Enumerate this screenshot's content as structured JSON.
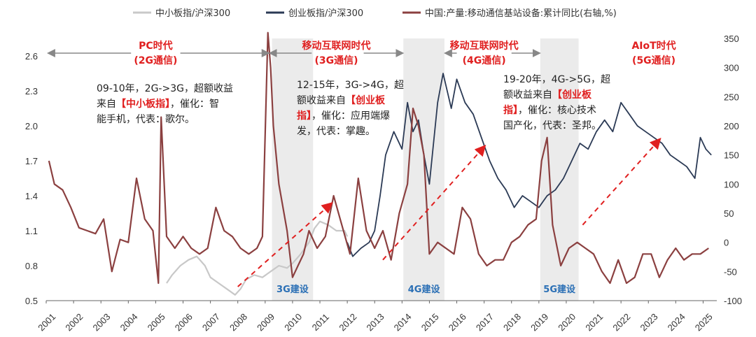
{
  "chart_data": {
    "type": "line",
    "legend": [
      {
        "name": "中小板指/沪深300",
        "color": "#c8c8c8",
        "axis": "left"
      },
      {
        "name": "创业板指/沪深300",
        "color": "#2b3a55",
        "axis": "left"
      },
      {
        "name": "中国:产量:移动通信基站设备:累计同比(右轴,%)",
        "color": "#8b4040",
        "axis": "right"
      }
    ],
    "legend_position": "top",
    "left_axis": {
      "min": 0.5,
      "max": 2.75,
      "ticks": [
        "0.5",
        "0.8",
        "1.1",
        "1.4",
        "1.7",
        "2.0",
        "2.3",
        "2.6"
      ]
    },
    "right_axis": {
      "min": -100,
      "max": 350,
      "ticks": [
        "-100",
        "-50",
        "0",
        "50",
        "100",
        "150",
        "200",
        "250",
        "300",
        "350"
      ]
    },
    "x_axis": {
      "min": 2001,
      "max": 2025.5,
      "ticks": [
        "2001",
        "2002",
        "2003",
        "2004",
        "2005",
        "2006",
        "2007",
        "2008",
        "2009",
        "2010",
        "2011",
        "2012",
        "2013",
        "2014",
        "2015",
        "2016",
        "2017",
        "2018",
        "2019",
        "2020",
        "2021",
        "2022",
        "2023",
        "2024",
        "2025"
      ]
    },
    "grid": false,
    "series": [
      {
        "name": "中小板指/沪深300",
        "axis": "left",
        "color": "#c8c8c8",
        "x": [
          2005.4,
          2005.6,
          2005.9,
          2006.2,
          2006.5,
          2006.8,
          2007.0,
          2007.3,
          2007.6,
          2007.9,
          2008.1,
          2008.3,
          2008.6,
          2008.9,
          2009.2,
          2009.5,
          2009.8,
          2010.0,
          2010.3,
          2010.6,
          2010.8,
          2011.0,
          2011.3,
          2011.6,
          2011.9,
          2012.0
        ],
        "y": [
          0.65,
          0.72,
          0.8,
          0.85,
          0.88,
          0.8,
          0.7,
          0.65,
          0.6,
          0.55,
          0.6,
          0.68,
          0.72,
          0.7,
          0.75,
          0.8,
          0.78,
          0.82,
          0.9,
          1.0,
          1.12,
          1.18,
          1.15,
          1.1,
          1.1,
          1.05
        ]
      },
      {
        "name": "创业板指/沪深300",
        "axis": "left",
        "color": "#2b3a55",
        "x": [
          2012.0,
          2012.2,
          2012.5,
          2012.8,
          2013.0,
          2013.2,
          2013.4,
          2013.7,
          2014.0,
          2014.2,
          2014.4,
          2014.6,
          2014.8,
          2015.0,
          2015.3,
          2015.5,
          2015.8,
          2016.0,
          2016.3,
          2016.6,
          2016.9,
          2017.2,
          2017.5,
          2017.8,
          2018.1,
          2018.4,
          2018.7,
          2019.0,
          2019.3,
          2019.6,
          2019.9,
          2020.2,
          2020.5,
          2020.8,
          2021.1,
          2021.4,
          2021.7,
          2022.0,
          2022.3,
          2022.6,
          2022.9,
          2023.2,
          2023.5,
          2023.8,
          2024.1,
          2024.4,
          2024.7,
          2024.9,
          2025.1,
          2025.3
        ],
        "y": [
          1.0,
          0.88,
          0.95,
          1.0,
          1.1,
          1.4,
          1.75,
          1.95,
          1.8,
          2.2,
          1.95,
          2.05,
          1.75,
          1.5,
          2.2,
          2.45,
          2.15,
          2.4,
          2.2,
          2.1,
          1.9,
          1.7,
          1.55,
          1.45,
          1.3,
          1.4,
          1.35,
          1.3,
          1.4,
          1.45,
          1.55,
          1.7,
          1.85,
          1.8,
          1.95,
          2.05,
          1.95,
          2.2,
          2.1,
          2.0,
          1.95,
          1.9,
          1.85,
          1.75,
          1.7,
          1.65,
          1.55,
          1.9,
          1.8,
          1.75
        ]
      },
      {
        "name": "中国:产量:移动通信基站设备:累计同比(右轴,%)",
        "axis": "right",
        "color": "#8b4040",
        "x": [
          2001.1,
          2001.3,
          2001.6,
          2001.9,
          2002.2,
          2002.5,
          2002.8,
          2003.1,
          2003.4,
          2003.7,
          2004.0,
          2004.3,
          2004.6,
          2004.9,
          2005.1,
          2005.2,
          2005.4,
          2005.7,
          2006.0,
          2006.3,
          2006.6,
          2006.9,
          2007.2,
          2007.5,
          2007.8,
          2008.1,
          2008.4,
          2008.7,
          2008.9,
          2009.1,
          2009.2,
          2009.3,
          2009.5,
          2009.8,
          2010.0,
          2010.2,
          2010.4,
          2010.6,
          2010.9,
          2011.2,
          2011.5,
          2011.8,
          2012.1,
          2012.4,
          2012.7,
          2013.0,
          2013.3,
          2013.6,
          2013.9,
          2014.2,
          2014.4,
          2014.6,
          2014.8,
          2015.0,
          2015.3,
          2015.6,
          2015.9,
          2016.2,
          2016.5,
          2016.8,
          2017.1,
          2017.4,
          2017.7,
          2018.0,
          2018.3,
          2018.6,
          2018.9,
          2019.1,
          2019.3,
          2019.5,
          2019.8,
          2020.1,
          2020.4,
          2020.7,
          2021.0,
          2021.3,
          2021.6,
          2021.9,
          2022.2,
          2022.5,
          2022.8,
          2023.1,
          2023.4,
          2023.7,
          2024.0,
          2024.3,
          2024.6,
          2024.9,
          2025.2
        ],
        "y": [
          140,
          100,
          90,
          60,
          25,
          20,
          15,
          40,
          -50,
          5,
          0,
          110,
          40,
          20,
          -70,
          215,
          10,
          -10,
          10,
          -10,
          -20,
          -10,
          60,
          20,
          10,
          -10,
          -20,
          -10,
          10,
          360,
          300,
          200,
          100,
          20,
          -60,
          -40,
          -20,
          20,
          -10,
          10,
          80,
          30,
          -20,
          110,
          20,
          -10,
          20,
          -30,
          50,
          100,
          230,
          200,
          150,
          -20,
          0,
          -10,
          -20,
          60,
          40,
          -20,
          -40,
          -30,
          -30,
          0,
          10,
          30,
          40,
          140,
          180,
          30,
          -40,
          -10,
          0,
          -10,
          -20,
          -50,
          -70,
          -30,
          -70,
          -60,
          -20,
          -20,
          -60,
          -30,
          -10,
          -30,
          -20,
          -20,
          -10
        ]
      }
    ],
    "shaded_periods": [
      {
        "start": 2009.25,
        "end": 2010.75,
        "label": "3G建设"
      },
      {
        "start": 2014.05,
        "end": 2015.55,
        "label": "4G建设"
      },
      {
        "start": 2019.05,
        "end": 2020.45,
        "label": "5G建设"
      }
    ],
    "eras": [
      {
        "line1": "PC时代",
        "line2": "(2G通信)",
        "x_center": 2005.0
      },
      {
        "line1": "移动互联网时代",
        "line2": "(3G通信)",
        "x_center": 2011.6
      },
      {
        "line1": "移动互联网时代",
        "line2": "(4G通信)",
        "x_center": 2017.0
      },
      {
        "line1": "AIoT时代",
        "line2": "(5G通信)",
        "x_center": 2023.2
      }
    ],
    "annotations": [
      {
        "lines": [
          [
            {
              "t": "09-10年，2G->3G，超额收益"
            }
          ],
          [
            {
              "t": "来自"
            },
            {
              "t": "【中小板指】",
              "red": true
            },
            {
              "t": "，催化：智"
            }
          ],
          [
            {
              "t": "能手机，代表：歌尔。"
            }
          ]
        ]
      },
      {
        "lines": [
          [
            {
              "t": "12-15年，3G->4G，超"
            }
          ],
          [
            {
              "t": "额收益来自"
            },
            {
              "t": "【创业板",
              "red": true
            }
          ],
          [
            {
              "t": "指】",
              "red": true
            },
            {
              "t": "，催化：应用端爆"
            }
          ],
          [
            {
              "t": "发，代表：掌趣。"
            }
          ]
        ]
      },
      {
        "lines": [
          [
            {
              "t": "19-20年，4G->5G，超"
            }
          ],
          [
            {
              "t": "额收益来自"
            },
            {
              "t": "【创业板",
              "red": true
            }
          ],
          [
            {
              "t": "指】",
              "red": true
            },
            {
              "t": "，催化：核心技术"
            }
          ],
          [
            {
              "t": "国产化，代表：圣邦。"
            }
          ]
        ]
      }
    ]
  }
}
